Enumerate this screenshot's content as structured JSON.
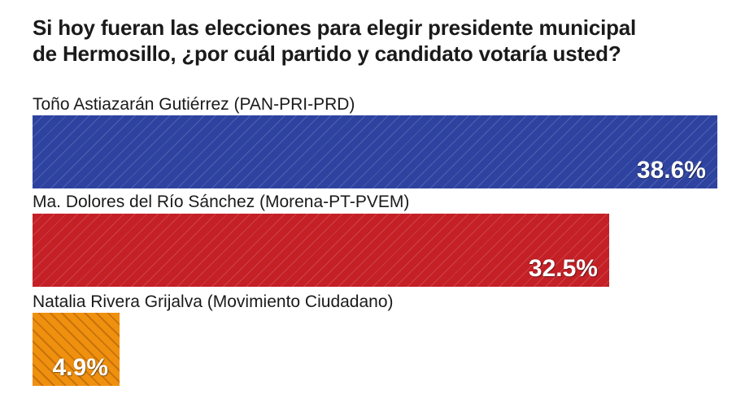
{
  "chart_data": {
    "type": "bar",
    "orientation": "horizontal",
    "title": "Si hoy fueran las elecciones para elegir presidente municipal de Hermosillo, ¿por cuál partido y candidato votaría usted?",
    "title_lines": [
      "Si hoy fueran las elecciones para elegir presidente municipal",
      "de Hermosillo, ¿por cuál partido y candidato votaría usted?"
    ],
    "categories": [
      "Toño Astiazarán Gutiérrez (PAN-PRI-PRD)",
      "Ma. Dolores del Río Sánchez (Morena-PT-PVEM)",
      "Natalia Rivera Grijalva (Movimiento Ciudadano)"
    ],
    "values": [
      38.6,
      32.5,
      4.9
    ],
    "value_labels": [
      "38.6%",
      "32.5%",
      "4.9%"
    ],
    "colors": [
      "#2e43a0",
      "#c42026",
      "#f0900f"
    ],
    "xlim": [
      0,
      38.6
    ],
    "grid": false,
    "legend": "none"
  }
}
